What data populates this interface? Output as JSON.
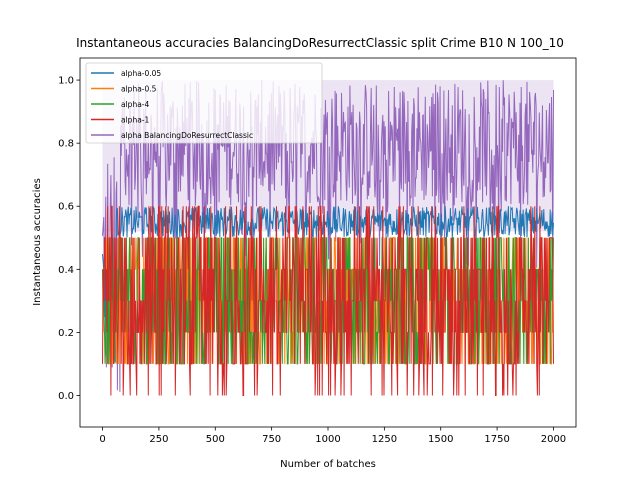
{
  "chart_data": {
    "type": "line",
    "title": "Instantaneous accuracies BalancingDoResurrectClassic split Crime B10 N 100_10",
    "xlabel": "Number of batches",
    "ylabel": "Instantaneous accuracies",
    "xlim": [
      -100,
      2100
    ],
    "ylim": [
      -0.1,
      1.07
    ],
    "x_ticks": [
      0,
      250,
      500,
      750,
      1000,
      1250,
      1500,
      1750,
      2000
    ],
    "y_ticks": [
      0.0,
      0.2,
      0.4,
      0.6,
      0.8,
      1.0
    ],
    "x_tick_labels": [
      "0",
      "250",
      "500",
      "750",
      "1000",
      "1250",
      "1500",
      "1750",
      "2000"
    ],
    "y_tick_labels": [
      "0.0",
      "0.2",
      "0.4",
      "0.6",
      "0.8",
      "1.0"
    ],
    "legend_position": "top-left",
    "grid": false,
    "x_range": [
      0,
      2000
    ],
    "series": [
      {
        "name": "alpha-0.05",
        "color": "#1f77b4",
        "typical_range": [
          0.5,
          0.6
        ],
        "mean": 0.56
      },
      {
        "name": "alpha-0.5",
        "color": "#ff7f0e",
        "typical_range": [
          0.1,
          0.5
        ],
        "mean": 0.3
      },
      {
        "name": "alpha-4",
        "color": "#2ca02c",
        "typical_range": [
          0.1,
          0.5
        ],
        "mean": 0.3
      },
      {
        "name": "alpha-1",
        "color": "#d62728",
        "typical_range": [
          0.0,
          0.6
        ],
        "mean": 0.3
      },
      {
        "name": "alpha BalancingDoResurrectClassic",
        "color": "#9467bd",
        "typical_range": [
          0.6,
          1.0
        ],
        "mean": 0.85
      }
    ],
    "band_color": "#9467bd"
  }
}
